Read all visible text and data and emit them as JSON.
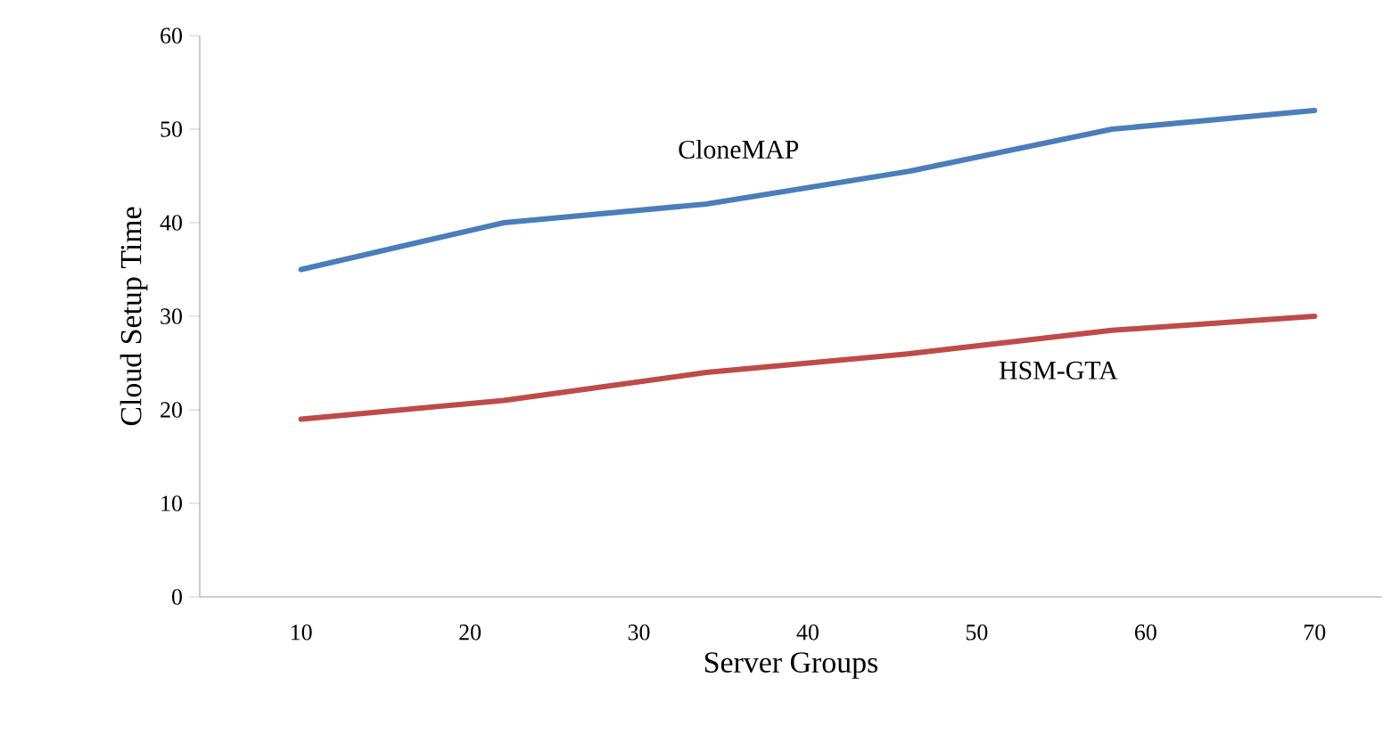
{
  "chart_data": {
    "type": "line",
    "xlabel": "Server Groups",
    "ylabel": "Cloud Setup Time",
    "xlim": [
      4,
      74
    ],
    "xticks": [
      10,
      20,
      30,
      40,
      50,
      60,
      70
    ],
    "ylim": [
      0,
      60
    ],
    "yticks": [
      0,
      10,
      20,
      30,
      40,
      50,
      60
    ],
    "x": [
      10,
      22,
      34,
      46,
      58,
      70
    ],
    "series": [
      {
        "name": "CloneMAP",
        "color": "#4a7ebb",
        "values": [
          35,
          40,
          42,
          45.5,
          50,
          52
        ]
      },
      {
        "name": "HSM-GTA",
        "color": "#be4b48",
        "values": [
          19,
          21,
          24,
          26,
          28.5,
          30
        ]
      }
    ],
    "grid": false,
    "legend": false,
    "marker": "none",
    "line_style": "solid"
  }
}
